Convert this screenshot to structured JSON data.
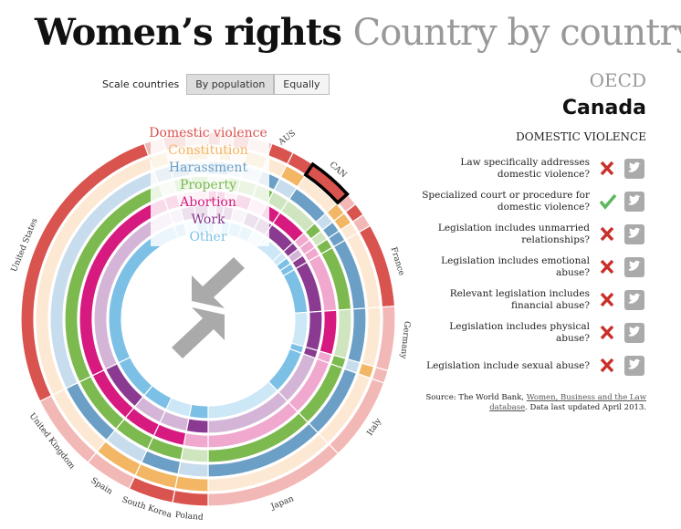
{
  "header": {
    "title": "Women’s rights",
    "subtitle": "Country by country"
  },
  "controls": {
    "label": "Scale countries",
    "buttons": [
      "By population",
      "Equally"
    ]
  },
  "legend": [
    {
      "label": "Domestic violence",
      "color": "#d9534f",
      "light": "#f2b8b6"
    },
    {
      "label": "Constitution",
      "color": "#f2b664",
      "light": "#fde9d3"
    },
    {
      "label": "Harassment",
      "color": "#6b9fc6",
      "light": "#c7dcec"
    },
    {
      "label": "Property",
      "color": "#7cb94e",
      "light": "#cfe5bf"
    },
    {
      "label": "Abortion",
      "color": "#d61a7f",
      "light": "#f1a8cf"
    },
    {
      "label": "Work",
      "color": "#8a3a90",
      "light": "#d4b5d7"
    },
    {
      "label": "Other",
      "color": "#7cc0e6",
      "light": "#cce7f6"
    }
  ],
  "countries": [
    "AUS",
    "CAN",
    "France",
    "Germany",
    "Italy",
    "Japan",
    "Poland",
    "South Korea",
    "Spain",
    "United Kingdom",
    "United States"
  ],
  "panel": {
    "group": "OECD",
    "country": "Canada",
    "section": "DOMESTIC VIOLENCE",
    "questions": [
      {
        "text": "Law specifically addresses domestic violence?",
        "yes": false
      },
      {
        "text": "Specialized court or procedure for domestic violence?",
        "yes": true
      },
      {
        "text": "Legislation includes unmarried relationships?",
        "yes": false
      },
      {
        "text": "Legislation includes emotional abuse?",
        "yes": false
      },
      {
        "text": "Relevant legislation includes financial abuse?",
        "yes": false
      },
      {
        "text": "Legislation includes physical abuse?",
        "yes": false
      },
      {
        "text": "Legislation include sexual abuse?",
        "yes": false
      }
    ]
  },
  "source": {
    "prefix": "Source: The World Bank,",
    "link": "Women, Business and the Law database",
    "suffix": ". Data last updated April 2013."
  }
}
